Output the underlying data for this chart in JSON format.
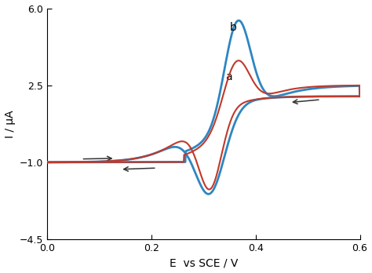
{
  "xlim": [
    0,
    0.6
  ],
  "ylim": [
    -4.5,
    6
  ],
  "xlabel": "E  vs SCE / V",
  "ylabel": "I / μA",
  "xticks": [
    0,
    0.2,
    0.4,
    0.6
  ],
  "yticks": [
    -4.5,
    -1,
    2.5,
    6
  ],
  "color_a": "#c0392b",
  "color_b": "#2e86c1",
  "label_a": "a",
  "label_b": "b",
  "arrow_color": "#333333",
  "lw_a": 1.5,
  "lw_b": 2.0
}
